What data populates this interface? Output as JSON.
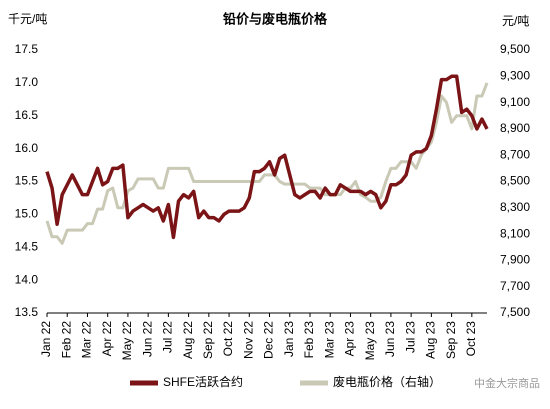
{
  "chart_data": {
    "type": "line",
    "title": "铅价与废电瓶价格",
    "y_unit": "千元/吨",
    "y2_unit": "元/吨",
    "watermark": "中金大宗商品",
    "categories": [
      "Jan 22",
      null,
      null,
      null,
      "Feb 22",
      null,
      null,
      null,
      "Mar 22",
      null,
      null,
      null,
      "Apr 22",
      null,
      null,
      null,
      "May 22",
      null,
      null,
      null,
      "Jun 22",
      null,
      null,
      null,
      "Jul 22",
      null,
      null,
      null,
      "Aug 22",
      null,
      null,
      null,
      "Sep 22",
      null,
      null,
      null,
      "Oct 22",
      null,
      null,
      null,
      "Nov 22",
      null,
      null,
      null,
      "Dec 22",
      null,
      null,
      null,
      "Jan 23",
      null,
      null,
      null,
      "Feb 23",
      null,
      null,
      null,
      "Mar 23",
      null,
      null,
      null,
      "Apr 23",
      null,
      null,
      null,
      "May 23",
      null,
      null,
      null,
      "Jun 23",
      null,
      null,
      null,
      "Jul 23",
      null,
      null,
      null,
      "Aug 23",
      null,
      null,
      null,
      "Sep 23",
      null,
      null,
      null,
      "Oct 23",
      null,
      null,
      null
    ],
    "series": [
      {
        "name": "SHFE活跃合约",
        "color": "#7b1416",
        "axis": "y",
        "values": [
          15.65,
          15.4,
          14.85,
          15.3,
          15.45,
          15.6,
          15.45,
          15.3,
          15.3,
          15.5,
          15.7,
          15.45,
          15.5,
          15.7,
          15.7,
          15.75,
          14.95,
          15.05,
          15.1,
          15.15,
          15.1,
          15.05,
          15.1,
          14.9,
          15.15,
          14.65,
          15.2,
          15.3,
          15.25,
          15.35,
          14.95,
          15.05,
          14.95,
          14.95,
          14.9,
          15.0,
          15.05,
          15.05,
          15.05,
          15.1,
          15.25,
          15.65,
          15.65,
          15.7,
          15.8,
          15.6,
          15.85,
          15.9,
          15.6,
          15.3,
          15.25,
          15.3,
          15.35,
          15.35,
          15.25,
          15.4,
          15.3,
          15.3,
          15.45,
          15.4,
          15.35,
          15.35,
          15.35,
          15.3,
          15.35,
          15.3,
          15.1,
          15.2,
          15.45,
          15.45,
          15.5,
          15.6,
          15.9,
          15.95,
          15.95,
          16.0,
          16.2,
          16.6,
          17.05,
          17.05,
          17.1,
          17.1,
          16.55,
          16.6,
          16.5,
          16.3,
          16.45,
          16.3
        ]
      },
      {
        "name": "废电瓶价格（右轴）",
        "color": "#c9c9b6",
        "axis": "y2",
        "values": [
          8200,
          8080,
          8080,
          8030,
          8130,
          8130,
          8130,
          8130,
          8180,
          8180,
          8290,
          8290,
          8430,
          8450,
          8300,
          8300,
          8430,
          8450,
          8520,
          8520,
          8520,
          8520,
          8450,
          8450,
          8600,
          8600,
          8600,
          8600,
          8600,
          8500,
          8500,
          8500,
          8500,
          8500,
          8500,
          8500,
          8500,
          8500,
          8500,
          8500,
          8500,
          8500,
          8500,
          8550,
          8550,
          8550,
          8500,
          8480,
          8480,
          8480,
          8480,
          8480,
          8450,
          8450,
          8450,
          8400,
          8400,
          8400,
          8400,
          8450,
          8450,
          8500,
          8400,
          8380,
          8350,
          8350,
          8380,
          8500,
          8600,
          8600,
          8650,
          8650,
          8650,
          8600,
          8700,
          8750,
          8800,
          8950,
          9150,
          9100,
          8950,
          9000,
          9000,
          9000,
          8900,
          9150,
          9150,
          9250
        ]
      }
    ],
    "ylim": [
      13.5,
      17.5
    ],
    "yticks": [
      13.5,
      {
        "value": 14,
        "label": "14.0"
      },
      14.5,
      {
        "value": 15,
        "label": "15.0"
      },
      15.5,
      {
        "value": 16,
        "label": "16.0"
      },
      16.5,
      {
        "value": 17,
        "label": "17.0"
      },
      17.5
    ],
    "y2lim": [
      7500,
      9500
    ],
    "y2ticks": [
      {
        "value": 7500,
        "label": "7,500"
      },
      {
        "value": 7700,
        "label": "7,700"
      },
      {
        "value": 7900,
        "label": "7,900"
      },
      {
        "value": 8100,
        "label": "8,100"
      },
      {
        "value": 8300,
        "label": "8,300"
      },
      {
        "value": 8500,
        "label": "8,500"
      },
      {
        "value": 8700,
        "label": "8,700"
      },
      {
        "value": 8900,
        "label": "8,900"
      },
      {
        "value": 9100,
        "label": "9,100"
      },
      {
        "value": 9300,
        "label": "9,300"
      },
      {
        "value": 9500,
        "label": "9,500"
      }
    ],
    "grid": false,
    "legend": "bottom"
  }
}
